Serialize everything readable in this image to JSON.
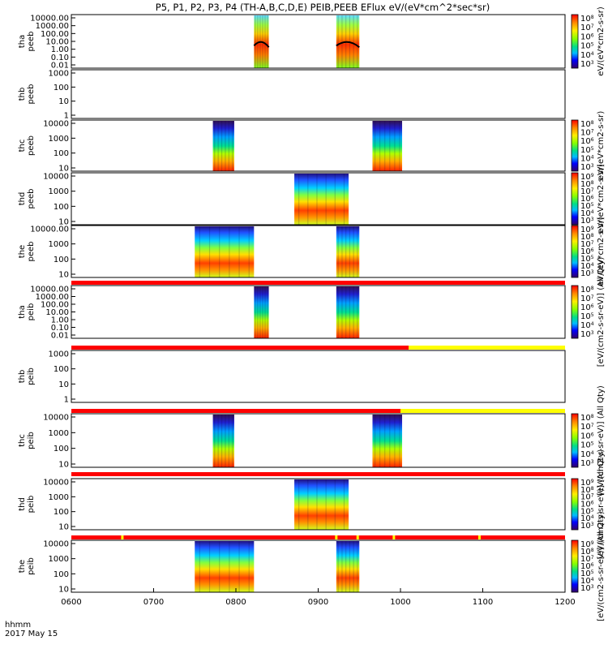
{
  "title": "P5, P1, P2, P3, P4 (TH-A,B,C,D,E) PEIB,PEEB EFlux eV/(eV*cm^2*sec*sr)",
  "footer": {
    "line1": "hhmm",
    "line2": "2017 May 15"
  },
  "colorbar_labels": {
    "eflux": "eV/(eV*cm2-s-sr)",
    "eflux_long": "[eV/(cm2-s-sr-eV)] (All Qty)"
  },
  "colors": {
    "flag_red": "#ff0000",
    "flag_yellow": "#ffff00",
    "curve": "#000000"
  },
  "chart_data": {
    "type": "heatmap",
    "x_ticks": [
      "0600",
      "0700",
      "0800",
      "0900",
      "1000",
      "1100",
      "1200"
    ],
    "x_range_hours": [
      6,
      12
    ],
    "panels": [
      {
        "label": "tha\npeeb",
        "yticks": [
          "10000.00",
          "1000.00",
          "100.00",
          "10.00",
          "1.00",
          "0.10",
          "0.01"
        ],
        "ylog": true,
        "colorbar": true,
        "cb_ticks": [
          "10^8",
          "10^7",
          "10^6",
          "10^5",
          "10^4",
          "10^3"
        ],
        "blocks": [
          [
            8.22,
            8.4,
            "mix"
          ],
          [
            9.22,
            9.5,
            "mix"
          ]
        ],
        "curve": true
      },
      {
        "label": "thb\npeeb",
        "yticks": [
          "1000",
          "100",
          "10",
          "1"
        ],
        "ylog": true,
        "colorbar": false,
        "blocks": []
      },
      {
        "label": "thc\npeeb",
        "yticks": [
          "10000",
          "1000",
          "100",
          "10"
        ],
        "ylog": true,
        "colorbar": true,
        "cb_ticks": [
          "10^8",
          "10^7",
          "10^6",
          "10^5",
          "10^4",
          "10^3"
        ],
        "blocks": [
          [
            7.72,
            7.98,
            "grad"
          ],
          [
            9.66,
            10.02,
            "grad"
          ]
        ]
      },
      {
        "label": "thd\npeeb",
        "yticks": [
          "10000",
          "1000",
          "100",
          "10"
        ],
        "ylog": true,
        "colorbar": true,
        "cb_ticks": [
          "10^9",
          "10^8",
          "10^7",
          "10^6",
          "10^5",
          "10^4",
          "10^3"
        ],
        "blocks": [
          [
            8.71,
            9.37,
            "hot"
          ]
        ]
      },
      {
        "label": "the\npeeb",
        "yticks": [
          "10000.00",
          "1000",
          "100",
          "10"
        ],
        "ylog": true,
        "colorbar": true,
        "cb_ticks": [
          "10^9",
          "10^8",
          "10^7",
          "10^6",
          "10^5",
          "10^4",
          "10^3"
        ],
        "blocks": [
          [
            7.5,
            8.22,
            "hot"
          ],
          [
            9.22,
            9.5,
            "hot"
          ]
        ]
      },
      {
        "label": "tha\npeib",
        "yticks": [
          "10000.00",
          "1000.00",
          "100.00",
          "10.00",
          "1.00",
          "0.10",
          "0.01"
        ],
        "ylog": true,
        "colorbar": true,
        "cb_ticks": [
          "10^8",
          "10^7",
          "10^6",
          "10^5",
          "10^4",
          "10^3"
        ],
        "blocks": [
          [
            8.22,
            8.4,
            "grad"
          ],
          [
            9.22,
            9.5,
            "grad"
          ]
        ],
        "flag": [
          [
            6,
            12,
            "red"
          ]
        ]
      },
      {
        "label": "thb\npeib",
        "yticks": [
          "1000",
          "100",
          "10",
          "1"
        ],
        "ylog": true,
        "colorbar": false,
        "blocks": [],
        "flag": [
          [
            6,
            10.1,
            "red"
          ],
          [
            10.1,
            12,
            "yellow"
          ]
        ]
      },
      {
        "label": "thc\npeib",
        "yticks": [
          "10000",
          "1000",
          "100",
          "10"
        ],
        "ylog": true,
        "colorbar": true,
        "cb_ticks": [
          "10^8",
          "10^7",
          "10^6",
          "10^5",
          "10^4",
          "10^3"
        ],
        "blocks": [
          [
            7.72,
            7.98,
            "grad"
          ],
          [
            9.66,
            10.02,
            "grad"
          ]
        ],
        "flag": [
          [
            6,
            10.0,
            "red"
          ],
          [
            10.0,
            12,
            "yellow"
          ]
        ]
      },
      {
        "label": "thd\npeib",
        "yticks": [
          "10000",
          "1000",
          "100",
          "10"
        ],
        "ylog": true,
        "colorbar": true,
        "cb_ticks": [
          "10^9",
          "10^8",
          "10^7",
          "10^6",
          "10^5",
          "10^4",
          "10^3"
        ],
        "blocks": [
          [
            8.71,
            9.37,
            "hot"
          ]
        ],
        "flag": [
          [
            6,
            12,
            "red"
          ]
        ]
      },
      {
        "label": "the\npeib",
        "yticks": [
          "10000",
          "1000",
          "100",
          "10"
        ],
        "ylog": true,
        "colorbar": true,
        "cb_ticks": [
          "10^9",
          "10^8",
          "10^7",
          "10^6",
          "10^5",
          "10^4",
          "10^3"
        ],
        "blocks": [
          [
            7.5,
            8.22,
            "hot"
          ],
          [
            9.22,
            9.5,
            "hot"
          ]
        ],
        "flag": [
          [
            6,
            12,
            "red"
          ]
        ],
        "flag_marks": [
          6.62,
          9.22,
          9.48,
          9.92,
          10.96
        ]
      }
    ]
  }
}
